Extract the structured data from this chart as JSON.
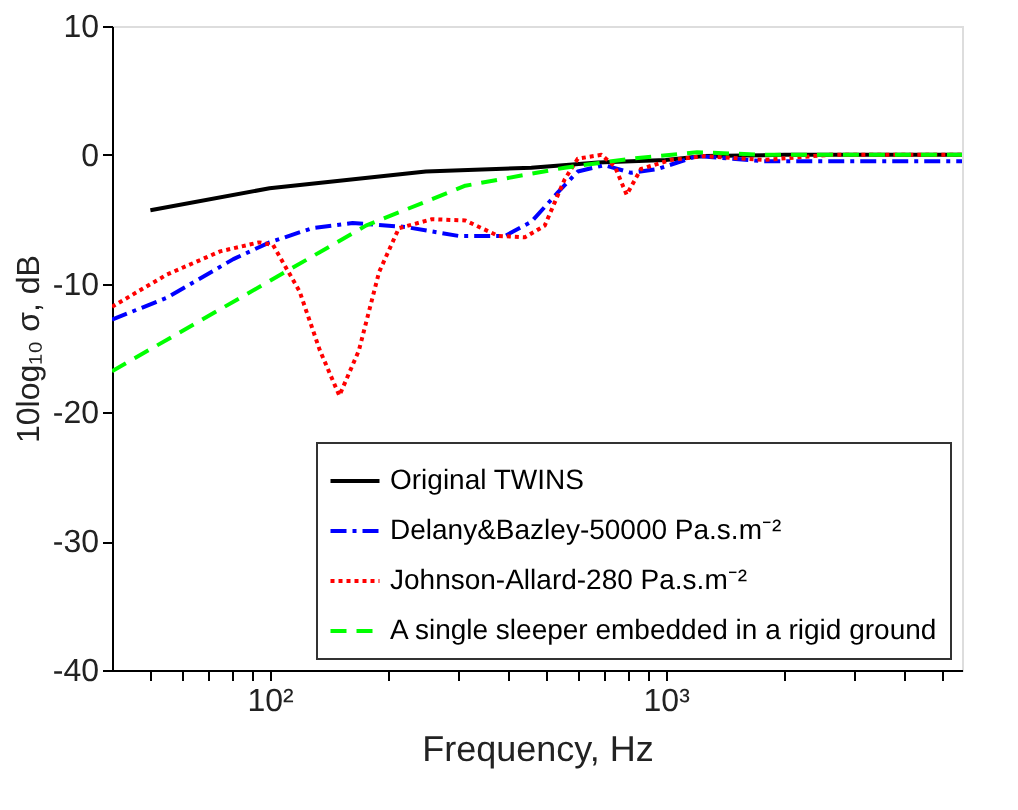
{
  "chart_data": {
    "type": "line",
    "xlabel": "Frequency, Hz",
    "ylabel": "10log₁₀ σ, dB",
    "log": "x",
    "grid": false,
    "legend": "bottom right",
    "xlim": [
      40,
      5600
    ],
    "ylim": [
      -40,
      10
    ],
    "yticks": [
      -40,
      -30,
      -20,
      -10,
      0,
      10
    ],
    "xticks": [
      {
        "value": 50,
        "label": null
      },
      {
        "value": 60,
        "label": null
      },
      {
        "value": 70,
        "label": null
      },
      {
        "value": 80,
        "label": null
      },
      {
        "value": 90,
        "label": null
      },
      {
        "value": 100,
        "label": "10²"
      },
      {
        "value": 200,
        "label": null
      },
      {
        "value": 300,
        "label": null
      },
      {
        "value": 400,
        "label": null
      },
      {
        "value": 500,
        "label": null
      },
      {
        "value": 600,
        "label": null
      },
      {
        "value": 700,
        "label": null
      },
      {
        "value": 800,
        "label": null
      },
      {
        "value": 900,
        "label": null
      },
      {
        "value": 1000,
        "label": "10³"
      },
      {
        "value": 2000,
        "label": null
      },
      {
        "value": 3000,
        "label": null
      },
      {
        "value": 4000,
        "label": null
      },
      {
        "value": 5000,
        "label": null
      }
    ],
    "series": [
      {
        "name": "Original TWINS",
        "color": "#000000",
        "line_style": "solid",
        "x": [
          50,
          100,
          248,
          458,
          674,
          1000,
          1250,
          2000,
          5600
        ],
        "values": [
          -4.3,
          -2.6,
          -1.3,
          -1.0,
          -0.6,
          -0.4,
          -0.1,
          0,
          0
        ]
      },
      {
        "name": "Delany&Bazley-50000 Pa.s.m⁻²",
        "color": "#0000ff",
        "line_style": "dashdot",
        "x": [
          40,
          55,
          81,
          100,
          128,
          162,
          220,
          300,
          393,
          458,
          535,
          600,
          700,
          818,
          955,
          1200,
          1770,
          5600
        ],
        "values": [
          -12.8,
          -11.1,
          -8.1,
          -6.8,
          -5.7,
          -5.3,
          -5.6,
          -6.3,
          -6.3,
          -5.2,
          -2.9,
          -1.3,
          -0.8,
          -1.4,
          -1.1,
          -0.1,
          -0.5,
          -0.5
        ]
      },
      {
        "name": "Johnson-Allard-280 Pa.s.m⁻²",
        "color": "#ff0000",
        "line_style": "dotted",
        "x": [
          40,
          55,
          75,
          94,
          102,
          119,
          134,
          150,
          168,
          189,
          212,
          257,
          312,
          378,
          441,
          495,
          556,
          600,
          688,
          744,
          797,
          866,
          1030,
          1250,
          1770,
          2600,
          5600
        ],
        "values": [
          -11.8,
          -9.3,
          -7.5,
          -6.8,
          -7.0,
          -10.6,
          -15.2,
          -18.7,
          -15.2,
          -9.1,
          -5.7,
          -5.0,
          -5.1,
          -6.3,
          -6.4,
          -5.5,
          -1.9,
          -0.3,
          0,
          -0.9,
          -3.1,
          -1.1,
          -0.4,
          -0.1,
          -0.4,
          0,
          0
        ]
      },
      {
        "name": "A single sleeper embedded in a rigid ground",
        "color": "#00ff00",
        "line_style": "dashed",
        "x": [
          40,
          100,
          175,
          312,
          556,
          818,
          1200,
          1770,
          5600
        ],
        "values": [
          -16.8,
          -9.8,
          -5.5,
          -2.4,
          -1.0,
          -0.3,
          0.2,
          0,
          0
        ]
      }
    ]
  }
}
